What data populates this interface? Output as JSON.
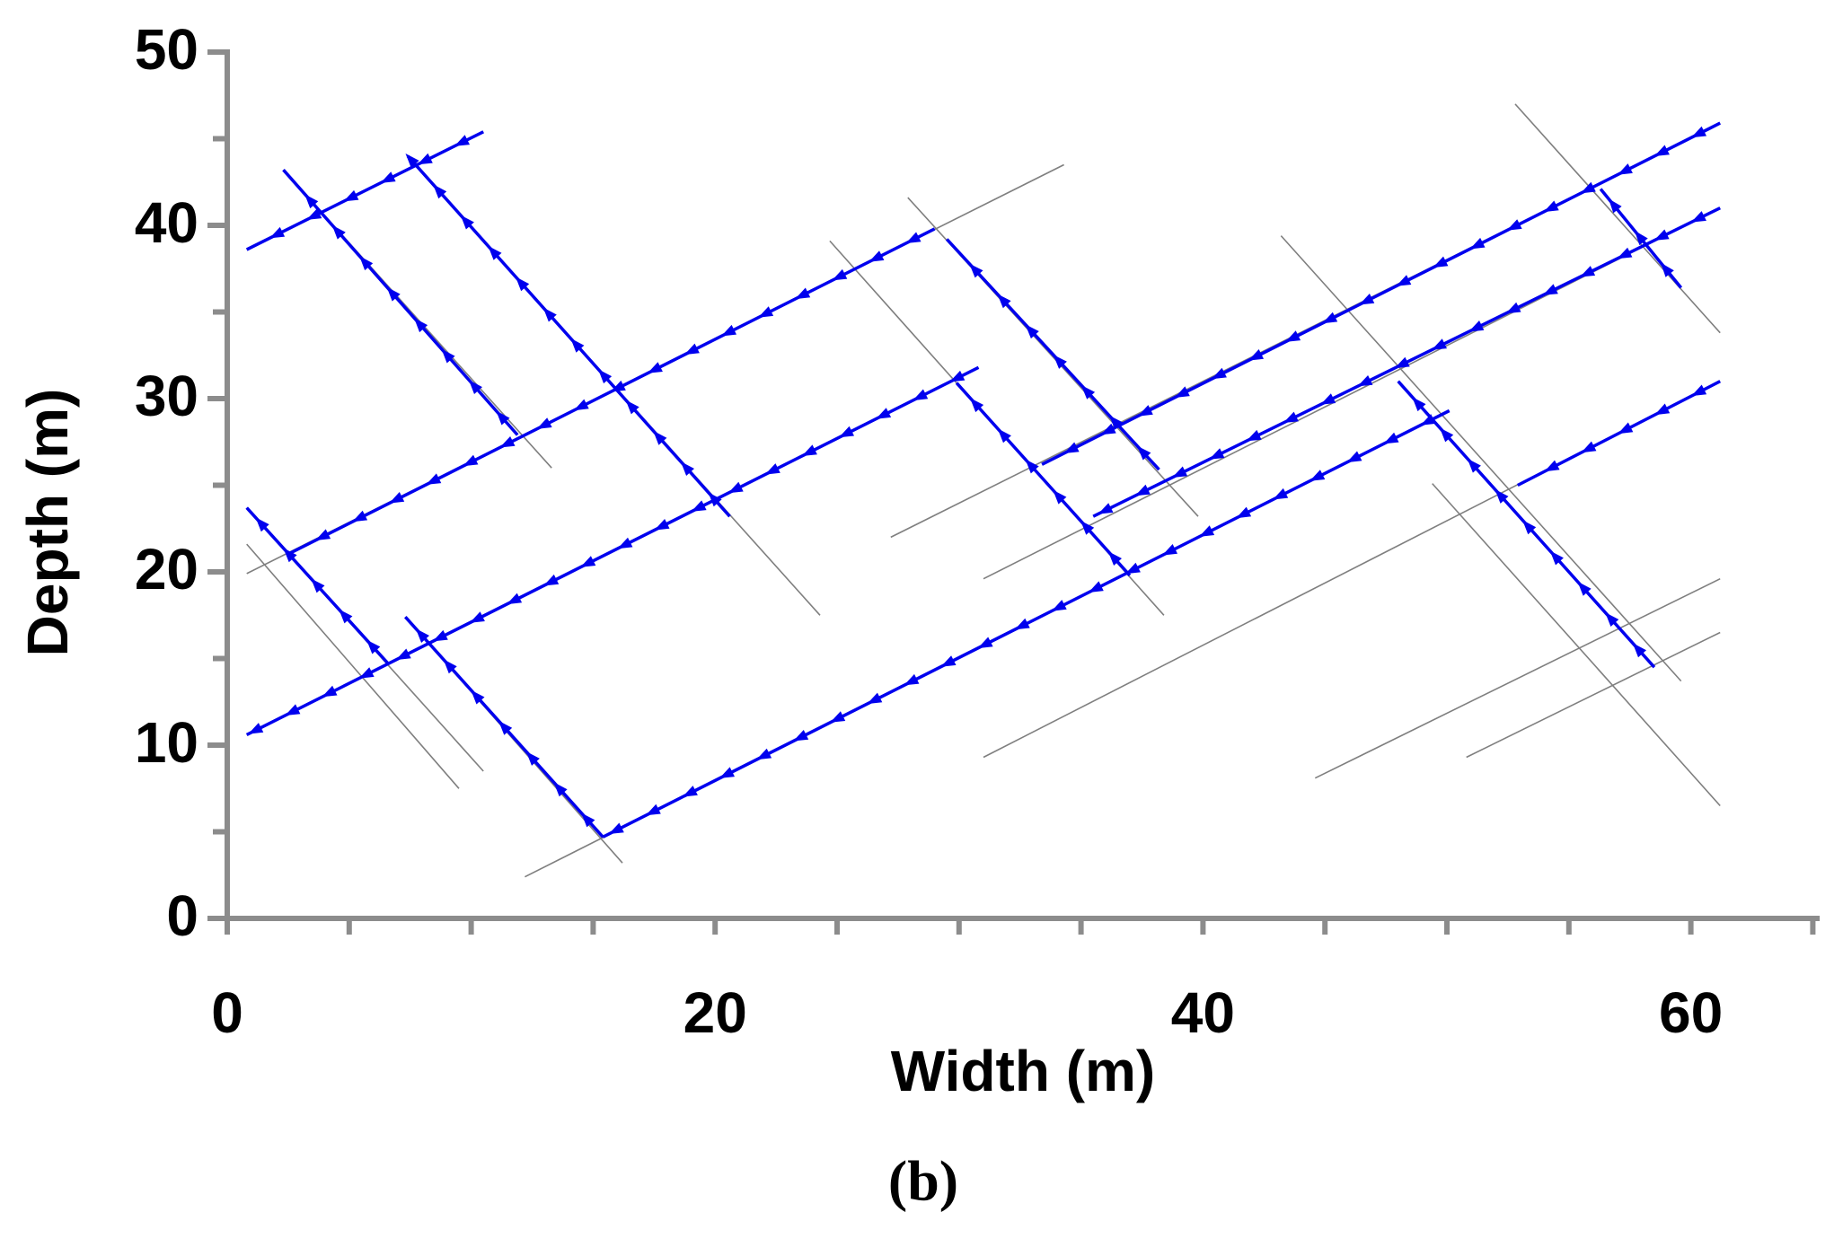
{
  "chart_data": {
    "type": "segments",
    "xlabel": "Width (m)",
    "ylabel": "Depth (m)",
    "caption": "(b)",
    "xlim": [
      0,
      65
    ],
    "ylim": [
      0,
      50
    ],
    "xticks": [
      0,
      20,
      40,
      60
    ],
    "yticks": [
      0,
      10,
      20,
      30,
      40,
      50
    ],
    "xminorticks": [
      5,
      10,
      15,
      25,
      30,
      35,
      45,
      50,
      55,
      65
    ],
    "yminorticks": [
      5,
      15,
      25,
      35,
      45
    ],
    "axis_color": "#8c8c8c",
    "series": [
      {
        "color": "#7f7f7f",
        "x": [
          0.8,
          10.5,
          null,
          0.8,
          34.3,
          null,
          0.8,
          30.8,
          null,
          12.2,
          50.1,
          null,
          27.2,
          61.2,
          null,
          31.0,
          61.2,
          null,
          31.0,
          61.2,
          null,
          44.6,
          61.2,
          null,
          50.8,
          61.2,
          null,
          2.3,
          13.3,
          null,
          7.4,
          24.3,
          null,
          0.8,
          10.5,
          null,
          0.8,
          9.5,
          null,
          7.3,
          16.2,
          null,
          24.7,
          38.4,
          null,
          27.9,
          39.8,
          null,
          43.2,
          59.6,
          null,
          49.4,
          61.2,
          null,
          52.8,
          61.2
        ],
        "values": [
          38.6,
          45.4,
          null,
          19.9,
          43.5,
          null,
          10.6,
          31.8,
          null,
          2.4,
          29.3,
          null,
          22.0,
          45.9,
          null,
          19.6,
          41.0,
          null,
          9.3,
          31.0,
          null,
          8.1,
          19.6,
          null,
          9.3,
          16.5,
          null,
          43.2,
          26.0,
          null,
          44.0,
          17.5,
          null,
          23.7,
          8.5,
          null,
          21.6,
          7.5,
          null,
          17.4,
          3.2,
          null,
          39.1,
          17.5,
          null,
          41.6,
          23.2,
          null,
          39.4,
          13.7,
          null,
          25.1,
          6.5,
          null,
          47.0,
          33.8
        ]
      },
      {
        "color": "#0000ee",
        "x": [
          0.8,
          10.5,
          null,
          2.6,
          29.0,
          null,
          0.8,
          30.8,
          null,
          15.4,
          50.1,
          null,
          33.4,
          61.2,
          null,
          35.5,
          61.2,
          null,
          52.9,
          61.2,
          null,
          2.3,
          11.9,
          null,
          7.4,
          20.6,
          null,
          0.8,
          6.6,
          null,
          7.3,
          15.4,
          null,
          29.5,
          38.2,
          null,
          29.9,
          37.0,
          null,
          48.0,
          58.5,
          null,
          56.3,
          59.6
        ],
        "values": [
          38.6,
          45.4,
          null,
          21.1,
          39.8,
          null,
          10.6,
          31.8,
          null,
          4.7,
          29.3,
          null,
          26.2,
          45.9,
          null,
          23.2,
          41.0,
          null,
          25.0,
          31.0,
          null,
          43.2,
          27.9,
          null,
          44.0,
          23.2,
          null,
          23.7,
          14.7,
          null,
          17.4,
          4.7,
          null,
          39.2,
          25.9,
          null,
          30.9,
          19.8,
          null,
          31.0,
          14.5,
          null,
          42.1,
          36.4
        ]
      }
    ]
  }
}
